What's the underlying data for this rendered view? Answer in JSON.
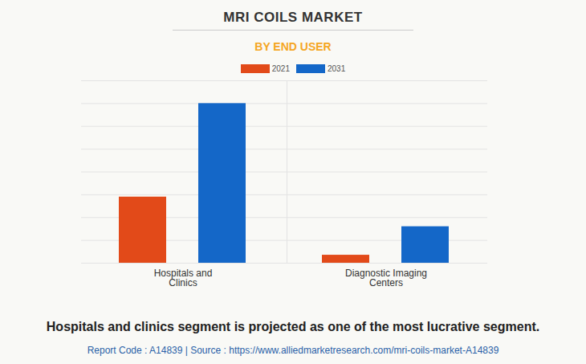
{
  "chart_data": {
    "type": "bar",
    "title": "MRI COILS MARKET",
    "subtitle": "BY END USER",
    "categories": [
      "Hospitals and\nClinics",
      "Diagnostic Imaging\nCenters"
    ],
    "series": [
      {
        "name": "2021",
        "color": "#e24a19",
        "values": [
          2.9,
          0.35
        ]
      },
      {
        "name": "2031",
        "color": "#1467c8",
        "values": [
          7.0,
          1.6
        ]
      }
    ],
    "ylim": [
      0,
      8
    ],
    "yticks": [
      0,
      1,
      2,
      3,
      4,
      5,
      6,
      7,
      8
    ],
    "grid": true,
    "tick_labels": "x",
    "legend": "top",
    "caption": "Hospitals and clinics segment is projected as one of the most lucrative segment.",
    "source": "Report Code : A14839  |  Source : https://www.alliedmarketresearch.com/mri-coils-market-A14839"
  }
}
